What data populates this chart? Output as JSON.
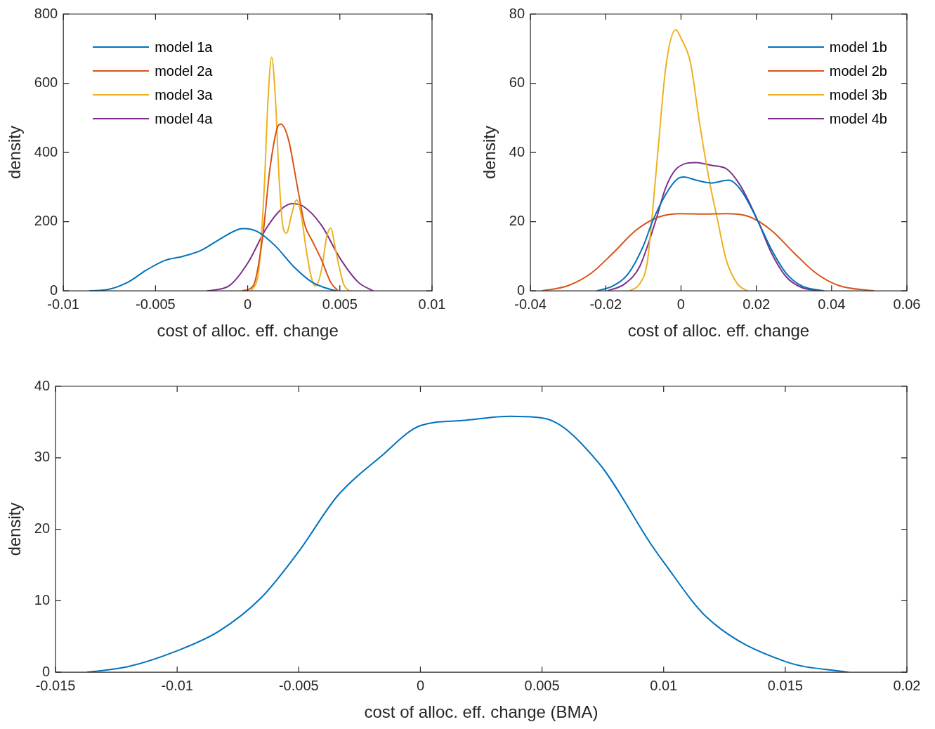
{
  "chart_data": [
    {
      "type": "line",
      "xlabel": "cost of alloc. eff. change",
      "ylabel": "density",
      "xlim": [
        -0.01,
        0.01
      ],
      "ylim": [
        0,
        800
      ],
      "xticks": [
        -0.01,
        -0.005,
        0,
        0.005,
        0.01
      ],
      "yticks": [
        0,
        200,
        400,
        600,
        800
      ],
      "legend": "top left",
      "series": [
        {
          "name": "model 1a",
          "color": "#0072bd",
          "x": [
            -0.0086,
            -0.0075,
            -0.0065,
            -0.0055,
            -0.0045,
            -0.0035,
            -0.0025,
            -0.0015,
            -0.0005,
            -0.0002,
            0.0005,
            0.0015,
            0.0025,
            0.0035,
            0.0045,
            0.0048
          ],
          "values": [
            0,
            5,
            25,
            60,
            88,
            100,
            118,
            150,
            178,
            180,
            172,
            130,
            70,
            25,
            4,
            0
          ]
        },
        {
          "name": "model 2a",
          "color": "#d95319",
          "x": [
            -0.0003,
            0.0003,
            0.0008,
            0.0012,
            0.0016,
            0.0018,
            0.0022,
            0.0027,
            0.0031,
            0.0035,
            0.004,
            0.0045,
            0.0049
          ],
          "values": [
            0,
            15,
            150,
            350,
            470,
            482,
            440,
            300,
            190,
            145,
            90,
            25,
            0
          ]
        },
        {
          "name": "model 3a",
          "color": "#edb120",
          "x": [
            0.0002,
            0.0006,
            0.0009,
            0.0011,
            0.0013,
            0.0015,
            0.0017,
            0.0019,
            0.0021,
            0.0024,
            0.00265,
            0.0029,
            0.0032,
            0.0035,
            0.0037,
            0.004,
            0.0043,
            0.0045,
            0.0048,
            0.0052,
            0.0055
          ],
          "values": [
            0,
            60,
            300,
            550,
            675,
            560,
            330,
            190,
            167,
            225,
            263,
            220,
            110,
            30,
            14,
            60,
            160,
            181,
            110,
            20,
            0
          ]
        },
        {
          "name": "model 4a",
          "color": "#7e2f8e",
          "x": [
            -0.0022,
            -0.001,
            0,
            0.001,
            0.0018,
            0.0024,
            0.003,
            0.004,
            0.005,
            0.006,
            0.0068
          ],
          "values": [
            0,
            15,
            80,
            180,
            235,
            252,
            245,
            190,
            95,
            25,
            0
          ]
        }
      ]
    },
    {
      "type": "line",
      "xlabel": "cost of alloc. eff. change",
      "ylabel": "density",
      "xlim": [
        -0.04,
        0.06
      ],
      "ylim": [
        0,
        80
      ],
      "xticks": [
        -0.04,
        -0.02,
        0,
        0.02,
        0.04,
        0.06
      ],
      "yticks": [
        0,
        20,
        40,
        60,
        80
      ],
      "legend": "top right",
      "series": [
        {
          "name": "model 1b",
          "color": "#0072bd",
          "x": [
            -0.0224,
            -0.018,
            -0.014,
            -0.01,
            -0.0076,
            -0.004,
            -0.001,
            0.0008,
            0.004,
            0.008,
            0.0127,
            0.016,
            0.0205,
            0.024,
            0.028,
            0.032,
            0.038
          ],
          "values": [
            0,
            1.5,
            5,
            13,
            20,
            28,
            32.3,
            32.9,
            32,
            31.2,
            32,
            29,
            20,
            12,
            5,
            1.5,
            0
          ]
        },
        {
          "name": "model 2b",
          "color": "#d95319",
          "x": [
            -0.037,
            -0.03,
            -0.024,
            -0.018,
            -0.012,
            -0.006,
            0,
            0.006,
            0.012,
            0.018,
            0.024,
            0.03,
            0.036,
            0.042,
            0.0513
          ],
          "values": [
            0,
            1.5,
            5,
            11,
            17.5,
            21.3,
            22.3,
            22.2,
            22.3,
            21.5,
            17.5,
            11,
            5,
            1.5,
            0
          ]
        },
        {
          "name": "model 3b",
          "color": "#edb120",
          "x": [
            -0.0137,
            -0.011,
            -0.009,
            -0.0078,
            -0.006,
            -0.004,
            -0.0014,
            0,
            0.0025,
            0.005,
            0.0075,
            0.0098,
            0.012,
            0.015,
            0.0176
          ],
          "values": [
            0,
            2,
            8,
            20,
            42,
            65,
            75.5,
            73,
            66,
            48,
            32,
            20,
            9,
            2,
            0
          ]
        },
        {
          "name": "model 4b",
          "color": "#7e2f8e",
          "x": [
            -0.0195,
            -0.015,
            -0.011,
            -0.0068,
            -0.004,
            -0.001,
            0.0041,
            0.008,
            0.0123,
            0.016,
            0.0205,
            0.024,
            0.028,
            0.032,
            0.037
          ],
          "values": [
            0,
            2,
            7,
            20,
            30,
            35.5,
            37.1,
            36.3,
            35.1,
            30,
            20,
            11,
            4,
            1,
            0
          ]
        }
      ]
    },
    {
      "type": "line",
      "xlabel": "cost of alloc. eff. change (BMA)",
      "ylabel": "density",
      "xlim": [
        -0.015,
        0.02
      ],
      "ylim": [
        0,
        40
      ],
      "xticks": [
        -0.015,
        -0.01,
        -0.005,
        0,
        0.005,
        0.01,
        0.015,
        0.02
      ],
      "yticks": [
        0,
        10,
        20,
        30,
        40
      ],
      "series": [
        {
          "color": "#0072bd",
          "x": [
            -0.0137,
            -0.012,
            -0.01,
            -0.0083,
            -0.00655,
            -0.005,
            -0.0034,
            -0.00165,
            0,
            0.0017,
            0.0037,
            0.0051,
            0.0073,
            0.0095,
            0.01,
            0.0118,
            0.015,
            0.0176
          ],
          "values": [
            0,
            0.8,
            3,
            5.7,
            10.4,
            16.9,
            24.7,
            30.1,
            34.5,
            35.2,
            35.8,
            35.5,
            29.4,
            17.8,
            15.4,
            7.6,
            1.5,
            0
          ]
        }
      ]
    }
  ]
}
